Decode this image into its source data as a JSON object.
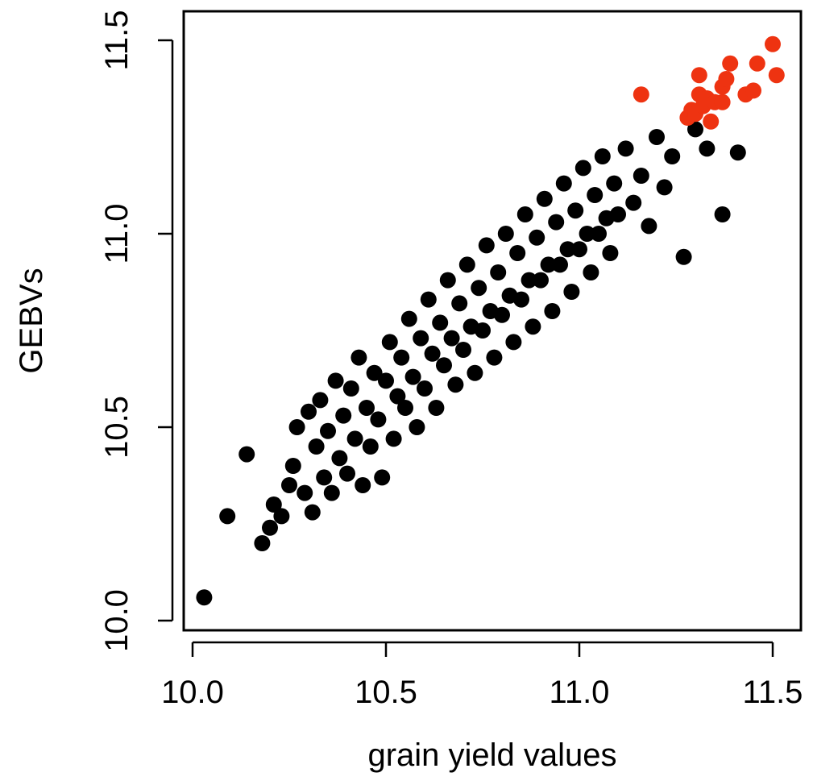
{
  "chart_data": {
    "type": "scatter",
    "title": "",
    "xlabel": "grain yield values",
    "ylabel": "GEBVs",
    "xlim": [
      9.98,
      11.56
    ],
    "ylim": [
      9.96,
      11.56
    ],
    "x_ticks": [
      "10.0",
      "10.5",
      "11.0",
      "11.5"
    ],
    "y_ticks": [
      "10.0",
      "10.5",
      "11.0",
      "11.5"
    ],
    "grid": false,
    "legend": "none",
    "colors": {
      "default": "#000000",
      "selected": "#ee3311"
    },
    "series": [
      {
        "color": "#ee3311",
        "points": [
          [
            11.16,
            11.36
          ],
          [
            11.28,
            11.3
          ],
          [
            11.29,
            11.32
          ],
          [
            11.3,
            11.31
          ],
          [
            11.31,
            11.41
          ],
          [
            11.31,
            11.36
          ],
          [
            11.32,
            11.33
          ],
          [
            11.33,
            11.35
          ],
          [
            11.34,
            11.29
          ],
          [
            11.35,
            11.34
          ],
          [
            11.37,
            11.34
          ],
          [
            11.37,
            11.38
          ],
          [
            11.38,
            11.4
          ],
          [
            11.39,
            11.44
          ],
          [
            11.43,
            11.36
          ],
          [
            11.45,
            11.37
          ],
          [
            11.46,
            11.44
          ],
          [
            11.5,
            11.49
          ],
          [
            11.51,
            11.41
          ]
        ]
      },
      {
        "color": "#000000",
        "points": [
          [
            10.03,
            10.06
          ],
          [
            10.09,
            10.27
          ],
          [
            10.14,
            10.43
          ],
          [
            10.18,
            10.2
          ],
          [
            10.2,
            10.24
          ],
          [
            10.21,
            10.3
          ],
          [
            10.23,
            10.27
          ],
          [
            10.25,
            10.35
          ],
          [
            10.26,
            10.4
          ],
          [
            10.27,
            10.5
          ],
          [
            10.29,
            10.33
          ],
          [
            10.3,
            10.54
          ],
          [
            10.31,
            10.28
          ],
          [
            10.32,
            10.45
          ],
          [
            10.33,
            10.57
          ],
          [
            10.34,
            10.37
          ],
          [
            10.35,
            10.49
          ],
          [
            10.36,
            10.33
          ],
          [
            10.37,
            10.62
          ],
          [
            10.38,
            10.42
          ],
          [
            10.39,
            10.53
          ],
          [
            10.4,
            10.38
          ],
          [
            10.41,
            10.6
          ],
          [
            10.42,
            10.47
          ],
          [
            10.43,
            10.68
          ],
          [
            10.44,
            10.35
          ],
          [
            10.45,
            10.55
          ],
          [
            10.46,
            10.45
          ],
          [
            10.47,
            10.64
          ],
          [
            10.48,
            10.52
          ],
          [
            10.49,
            10.37
          ],
          [
            10.5,
            10.62
          ],
          [
            10.51,
            10.72
          ],
          [
            10.52,
            10.47
          ],
          [
            10.53,
            10.58
          ],
          [
            10.54,
            10.68
          ],
          [
            10.55,
            10.55
          ],
          [
            10.56,
            10.78
          ],
          [
            10.57,
            10.63
          ],
          [
            10.58,
            10.5
          ],
          [
            10.59,
            10.73
          ],
          [
            10.6,
            10.6
          ],
          [
            10.61,
            10.83
          ],
          [
            10.62,
            10.69
          ],
          [
            10.63,
            10.55
          ],
          [
            10.64,
            10.77
          ],
          [
            10.65,
            10.66
          ],
          [
            10.66,
            10.88
          ],
          [
            10.67,
            10.73
          ],
          [
            10.68,
            10.61
          ],
          [
            10.69,
            10.82
          ],
          [
            10.7,
            10.7
          ],
          [
            10.71,
            10.92
          ],
          [
            10.72,
            10.76
          ],
          [
            10.73,
            10.64
          ],
          [
            10.74,
            10.86
          ],
          [
            10.75,
            10.75
          ],
          [
            10.76,
            10.97
          ],
          [
            10.77,
            10.8
          ],
          [
            10.78,
            10.68
          ],
          [
            10.79,
            10.9
          ],
          [
            10.8,
            10.79
          ],
          [
            10.81,
            11.0
          ],
          [
            10.82,
            10.84
          ],
          [
            10.83,
            10.72
          ],
          [
            10.84,
            10.95
          ],
          [
            10.85,
            10.83
          ],
          [
            10.86,
            11.05
          ],
          [
            10.87,
            10.88
          ],
          [
            10.88,
            10.76
          ],
          [
            10.89,
            10.99
          ],
          [
            10.9,
            10.88
          ],
          [
            10.91,
            11.09
          ],
          [
            10.92,
            10.92
          ],
          [
            10.93,
            10.8
          ],
          [
            10.94,
            11.03
          ],
          [
            10.95,
            10.92
          ],
          [
            10.96,
            11.13
          ],
          [
            10.97,
            10.96
          ],
          [
            10.98,
            10.85
          ],
          [
            10.99,
            11.06
          ],
          [
            11.0,
            10.96
          ],
          [
            11.01,
            11.17
          ],
          [
            11.02,
            11.0
          ],
          [
            11.03,
            10.9
          ],
          [
            11.04,
            11.1
          ],
          [
            11.05,
            11.0
          ],
          [
            11.06,
            11.2
          ],
          [
            11.07,
            11.04
          ],
          [
            11.08,
            10.95
          ],
          [
            11.09,
            11.13
          ],
          [
            11.1,
            11.05
          ],
          [
            11.12,
            11.22
          ],
          [
            11.14,
            11.08
          ],
          [
            11.16,
            11.15
          ],
          [
            11.18,
            11.02
          ],
          [
            11.2,
            11.25
          ],
          [
            11.22,
            11.12
          ],
          [
            11.24,
            11.2
          ],
          [
            11.27,
            10.94
          ],
          [
            11.3,
            11.27
          ],
          [
            11.33,
            11.22
          ],
          [
            11.37,
            11.05
          ],
          [
            11.41,
            11.21
          ]
        ]
      }
    ]
  }
}
